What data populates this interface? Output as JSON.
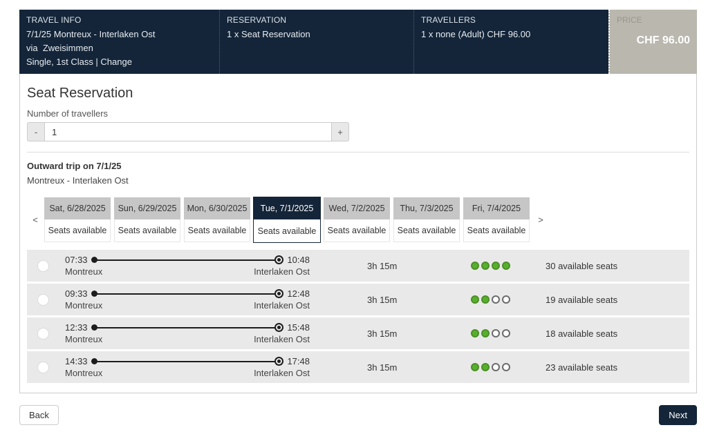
{
  "header": {
    "travel_info": {
      "label": "TRAVEL INFO",
      "line1": "7/1/25 Montreux - Interlaken Ost",
      "line2": "via  Zweisimmen",
      "line3_prefix": "Single, 1st Class | ",
      "change_label": "Change"
    },
    "reservation": {
      "label": "RESERVATION",
      "line1": "1 x Seat Reservation"
    },
    "travellers": {
      "label": "TRAVELLERS",
      "line1": "1 x none (Adult) CHF 96.00"
    },
    "price": {
      "label": "PRICE",
      "value": "CHF 96.00"
    }
  },
  "main": {
    "title": "Seat Reservation",
    "travellers_field_label": "Number of travellers",
    "stepper": {
      "decrease_label": "-",
      "value": "1",
      "increase_label": "+"
    },
    "outward_title": "Outward trip on 7/1/25",
    "outward_route": "Montreux - Interlaken Ost",
    "date_nav": {
      "prev_label": "<",
      "next_label": ">"
    },
    "date_tabs": [
      {
        "date": "Sat, 6/28/2025",
        "status": "Seats available",
        "selected": false
      },
      {
        "date": "Sun, 6/29/2025",
        "status": "Seats available",
        "selected": false
      },
      {
        "date": "Mon, 6/30/2025",
        "status": "Seats available",
        "selected": false
      },
      {
        "date": "Tue, 7/1/2025",
        "status": "Seats available",
        "selected": true
      },
      {
        "date": "Wed, 7/2/2025",
        "status": "Seats available",
        "selected": false
      },
      {
        "date": "Thu, 7/3/2025",
        "status": "Seats available",
        "selected": false
      },
      {
        "date": "Fri, 7/4/2025",
        "status": "Seats available",
        "selected": false
      }
    ],
    "trips": [
      {
        "dep_time": "07:33",
        "dep_station": "Montreux",
        "arr_time": "10:48",
        "arr_station": "Interlaken Ost",
        "duration": "3h 15m",
        "filled_dots": 4,
        "total_dots": 4,
        "seats": "30 available seats"
      },
      {
        "dep_time": "09:33",
        "dep_station": "Montreux",
        "arr_time": "12:48",
        "arr_station": "Interlaken Ost",
        "duration": "3h 15m",
        "filled_dots": 2,
        "total_dots": 4,
        "seats": "19 available seats"
      },
      {
        "dep_time": "12:33",
        "dep_station": "Montreux",
        "arr_time": "15:48",
        "arr_station": "Interlaken Ost",
        "duration": "3h 15m",
        "filled_dots": 2,
        "total_dots": 4,
        "seats": "18 available seats"
      },
      {
        "dep_time": "14:33",
        "dep_station": "Montreux",
        "arr_time": "17:48",
        "arr_station": "Interlaken Ost",
        "duration": "3h 15m",
        "filled_dots": 2,
        "total_dots": 4,
        "seats": "23 available seats"
      }
    ]
  },
  "footer": {
    "back_label": "Back",
    "next_label": "Next"
  },
  "colors": {
    "navy": "#142539",
    "price_box_bg": "#bab7ae",
    "tab_gray": "#c6c6c6",
    "row_bg": "#e9e9e9",
    "availability_green": "#57b02c"
  }
}
